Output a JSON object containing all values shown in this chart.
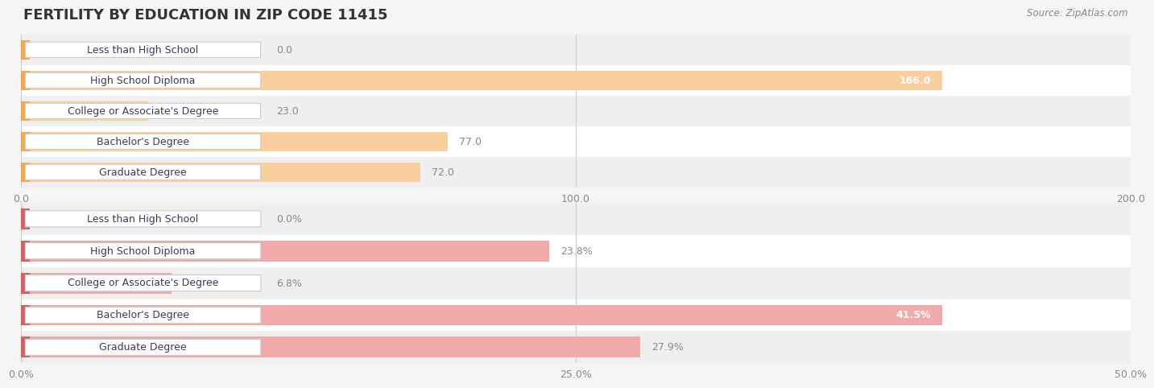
{
  "title": "FERTILITY BY EDUCATION IN ZIP CODE 11415",
  "source": "Source: ZipAtlas.com",
  "top_chart": {
    "categories": [
      "Less than High School",
      "High School Diploma",
      "College or Associate's Degree",
      "Bachelor's Degree",
      "Graduate Degree"
    ],
    "values": [
      0.0,
      166.0,
      23.0,
      77.0,
      72.0
    ],
    "bar_color_light": "#f9cfa0",
    "bar_color_dark": "#f5a84a",
    "xlim": [
      0,
      200
    ],
    "xticks": [
      0.0,
      100.0,
      200.0
    ],
    "xtick_labels": [
      "0.0",
      "100.0",
      "200.0"
    ]
  },
  "bottom_chart": {
    "categories": [
      "Less than High School",
      "High School Diploma",
      "College or Associate's Degree",
      "Bachelor's Degree",
      "Graduate Degree"
    ],
    "values": [
      0.0,
      23.8,
      6.8,
      41.5,
      27.9
    ],
    "bar_color_light": "#f0aaaa",
    "bar_color_dark": "#d96060",
    "xlim": [
      0,
      50
    ],
    "xticks": [
      0.0,
      25.0,
      50.0
    ],
    "xtick_labels": [
      "0.0%",
      "25.0%",
      "50.0%"
    ]
  },
  "row_odd_color": "#efefef",
  "row_even_color": "#ffffff",
  "label_box_color": "#ffffff",
  "label_text_color": "#3a3a5c",
  "value_color_outside": "#888888",
  "value_color_inside": "#ffffff",
  "title_fontsize": 13,
  "label_fontsize": 9,
  "tick_fontsize": 9,
  "source_fontsize": 8.5,
  "background_color": "#f5f5f5"
}
